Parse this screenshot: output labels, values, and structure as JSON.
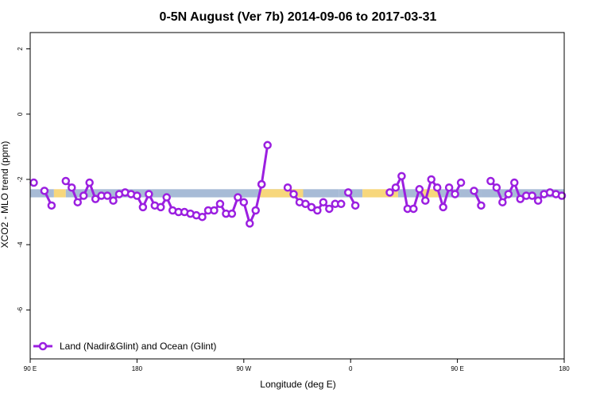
{
  "chart_data": {
    "type": "line",
    "title": "0-5N August (Ver 7b)   2014-09-06 to 2017-03-31",
    "xlabel": "Longitude (deg E)",
    "ylabel": "XCO2 - MLO trend (ppm)",
    "xlim": [
      90,
      540
    ],
    "ylim": [
      -7.5,
      2.5
    ],
    "x_ticks": [
      {
        "value": 90,
        "label": "90 E"
      },
      {
        "value": 180,
        "label": "180"
      },
      {
        "value": 270,
        "label": "90 W"
      },
      {
        "value": 360,
        "label": "0"
      },
      {
        "value": 450,
        "label": "90 E"
      },
      {
        "value": 540,
        "label": "180"
      }
    ],
    "y_ticks": [
      2,
      0,
      -2,
      -4,
      -6
    ],
    "grid": false,
    "legend": {
      "position": "bottom-left"
    },
    "band": {
      "y_range": [
        -2.55,
        -2.3
      ],
      "segments": [
        {
          "x0": 90,
          "x1": 110,
          "surface": "ocean"
        },
        {
          "x0": 110,
          "x1": 120,
          "surface": "land"
        },
        {
          "x0": 120,
          "x1": 350,
          "surface": "ocean"
        },
        {
          "x0": 283,
          "x1": 320,
          "surface": "land"
        },
        {
          "x0": 350,
          "x1": 370,
          "surface": "ocean"
        },
        {
          "x0": 370,
          "x1": 400,
          "surface": "land"
        },
        {
          "x0": 400,
          "x1": 420,
          "surface": "ocean"
        },
        {
          "x0": 420,
          "x1": 435,
          "surface": "land"
        },
        {
          "x0": 435,
          "x1": 470,
          "surface": "ocean"
        },
        {
          "x0": 470,
          "x1": 540,
          "surface": "ocean"
        }
      ],
      "colors": {
        "ocean": "#a7bbd6",
        "land": "#f7d77c"
      }
    },
    "series": [
      {
        "name": "Land (Nadir&Glint) and Ocean (Glint)",
        "color": "#9b1fe0",
        "segments": [
          {
            "x": [
              93
            ],
            "y": [
              -2.1
            ]
          },
          {
            "x": [
              102,
              108
            ],
            "y": [
              -2.35,
              -2.8
            ]
          },
          {
            "x": [
              120,
              125,
              130,
              135,
              140,
              145,
              150,
              155,
              160,
              165,
              170,
              175,
              180,
              185,
              190,
              195,
              200,
              205,
              210,
              215,
              220,
              225,
              230,
              235,
              240,
              245,
              250,
              255,
              260,
              265,
              270,
              275,
              280,
              285
            ],
            "y": [
              -2.05,
              -2.25,
              -2.7,
              -2.5,
              -2.1,
              -2.6,
              -2.5,
              -2.5,
              -2.65,
              -2.45,
              -2.4,
              -2.45,
              -2.5,
              -2.85,
              -2.45,
              -2.8,
              -2.85,
              -2.55,
              -2.95,
              -3.0,
              -3.0,
              -3.05,
              -3.1,
              -3.15,
              -2.95,
              -2.95,
              -2.75,
              -3.05,
              -3.05,
              -2.55,
              -2.7,
              -3.35,
              -2.95,
              -2.15
            ]
          },
          {
            "x": [
              285,
              290
            ],
            "y": [
              -2.15,
              -0.95
            ]
          },
          {
            "x": [
              307,
              312,
              317,
              322,
              327,
              332,
              337,
              342,
              347,
              352
            ],
            "y": [
              -2.25,
              -2.45,
              -2.7,
              -2.75,
              -2.85,
              -2.95,
              -2.7,
              -2.9,
              -2.75,
              -2.75
            ]
          },
          {
            "x": [
              358,
              364
            ],
            "y": [
              -2.4,
              -2.8
            ]
          },
          {
            "x": [
              393,
              398,
              403,
              408,
              413,
              418,
              423,
              428,
              433,
              438,
              443,
              448,
              453,
              458
            ],
            "y": [
              -2.4,
              -2.25,
              -1.9,
              -2.9,
              -2.9,
              -2.3,
              -2.65,
              -2.0,
              -2.25,
              -2.85,
              -2.25,
              -2.45,
              -2.1,
              null
            ]
          },
          {
            "x": [
              464,
              470
            ],
            "y": [
              -2.35,
              -2.8
            ]
          },
          {
            "x": [
              478,
              483,
              488,
              493,
              498,
              503,
              508,
              513,
              518,
              523,
              528,
              533,
              538
            ],
            "y": [
              -2.05,
              -2.25,
              -2.7,
              -2.45,
              -2.1,
              -2.6,
              -2.5,
              -2.5,
              -2.65,
              -2.45,
              -2.4,
              -2.45,
              -2.5
            ]
          }
        ]
      }
    ]
  }
}
